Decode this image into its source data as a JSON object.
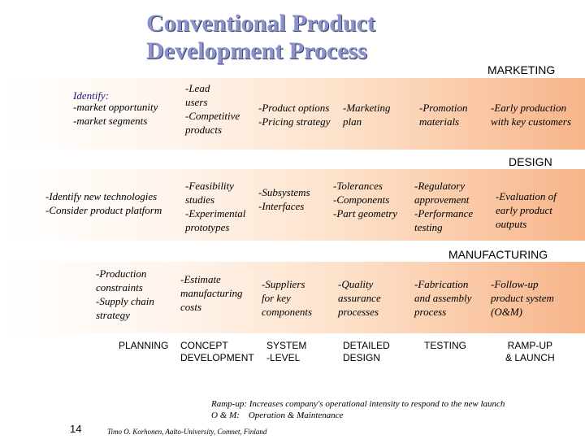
{
  "title_line1": "Conventional Product",
  "title_line2": "Development Process",
  "sections": {
    "marketing": "MARKETING",
    "design": "DESIGN",
    "manufacturing": "MANUFACTURING"
  },
  "marketing": {
    "planning_identify": "Identify:",
    "planning_items": "-market opportunity\n-market segments",
    "concept": "-Lead\nusers\n-Competitive\nproducts",
    "system": "-Product options\n-Pricing strategy",
    "detailed": "-Marketing\nplan",
    "testing": "-Promotion\nmaterials",
    "ramp": "-Early production\nwith key customers"
  },
  "design": {
    "planning": "-Identify new technologies\n-Consider product platform",
    "concept": "-Feasibility\nstudies\n-Experimental\nprototypes",
    "system": "-Subsystems\n-Interfaces",
    "detailed": "-Tolerances\n-Components\n-Part geometry",
    "testing": "-Regulatory\napprovement\n-Performance\ntesting",
    "ramp": "-Evaluation of\nearly product\noutputs"
  },
  "manufacturing": {
    "planning": "-Production\nconstraints\n-Supply chain\nstrategy",
    "concept": "-Estimate\nmanufacturing\ncosts",
    "system": "-Suppliers\nfor key\ncomponents",
    "detailed": "-Quality\nassurance\nprocesses",
    "testing": "-Fabrication\nand assembly\nprocess",
    "ramp": "-Follow-up\nproduct system\n(O&M)"
  },
  "phases": {
    "planning": "PLANNING",
    "concept": "CONCEPT\nDEVELOPMENT",
    "system": "SYSTEM\n-LEVEL",
    "detailed": "DETAILED\nDESIGN",
    "testing": "TESTING",
    "ramp": "RAMP-UP\n& LAUNCH"
  },
  "footnotes": {
    "rampup": "Ramp-up: Increases company's operational intensity to respond to the new launch",
    "om": "O & M:    Operation & Maintenance",
    "author": "Timo O. Korhonen, Aalto-University, Comnet, Finland"
  },
  "page_number": "14"
}
